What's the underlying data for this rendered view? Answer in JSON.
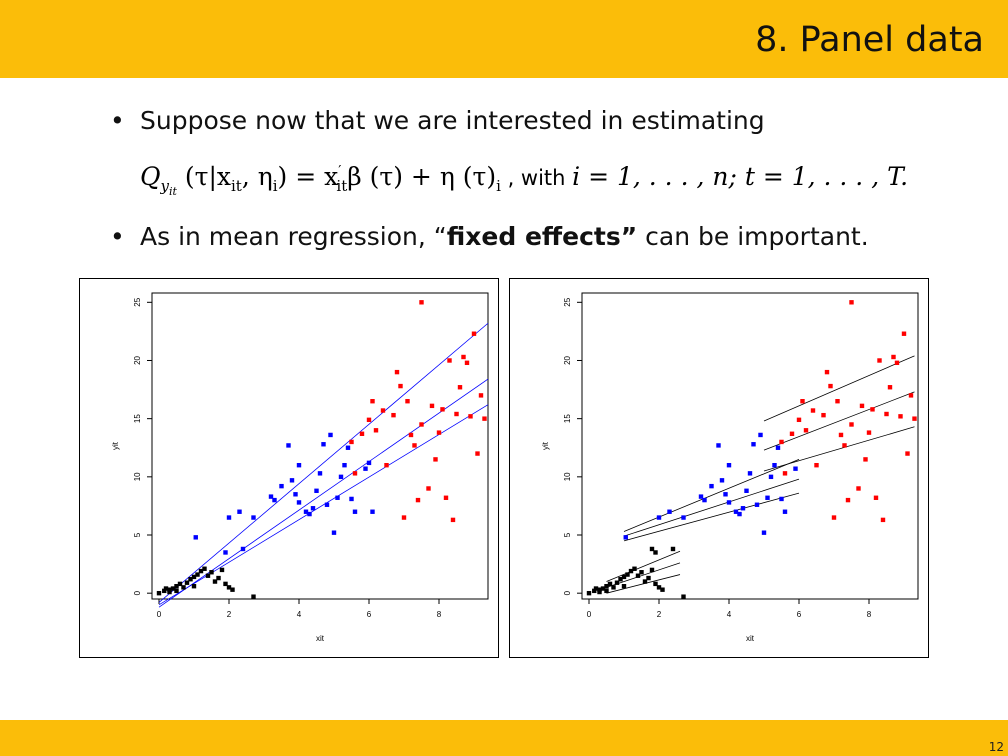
{
  "slide": {
    "title": "8. Panel data",
    "page_number": "12",
    "bullet1": "Suppose now that we are interested in estimating",
    "formula": {
      "lhs": "Q",
      "lhs_sub": "y",
      "lhs_subsub": "it",
      "args": "(τ|x",
      "args_sub": "it",
      "args_mid": ", η",
      "args_sub2": "i",
      "args_end": ") = x",
      "x_sup": "′",
      "x_sub": "it",
      "rhs": "β (τ) + η (τ)",
      "rhs_sub": "i",
      "with_text": " , with ",
      "range_i": "i = 1, . . . , n;  t = 1, . . . , T."
    },
    "bullet2_pre": "As in mean regression, “",
    "bullet2_bold": "fixed effects”",
    "bullet2_post": " can be important."
  },
  "chart_data": [
    {
      "type": "scatter",
      "title": "",
      "xlabel": "xit",
      "ylabel": "yit",
      "xlim": [
        -0.2,
        9.4
      ],
      "ylim": [
        -0.5,
        25.8
      ],
      "xticks": [
        "0",
        "2",
        "4",
        "6",
        "8"
      ],
      "yticks": [
        "0",
        "5",
        "10",
        "15",
        "20",
        "25"
      ],
      "series": [
        {
          "color": "#000000",
          "points": [
            [
              0,
              0
            ],
            [
              0.15,
              0.2
            ],
            [
              0.3,
              0.3
            ],
            [
              0.4,
              0.4
            ],
            [
              0.5,
              0.6
            ],
            [
              0.3,
              0.1
            ],
            [
              0.6,
              0.8
            ],
            [
              0.7,
              0.5
            ],
            [
              0.8,
              0.9
            ],
            [
              0.9,
              1.2
            ],
            [
              1.0,
              1.4
            ],
            [
              1.1,
              1.6
            ],
            [
              1.2,
              1.9
            ],
            [
              1.3,
              2.1
            ],
            [
              1.4,
              1.5
            ],
            [
              1.5,
              1.8
            ],
            [
              1.6,
              1.0
            ],
            [
              1.7,
              1.3
            ],
            [
              1.8,
              2.0
            ],
            [
              1.9,
              0.8
            ],
            [
              2.0,
              0.5
            ],
            [
              2.1,
              0.3
            ],
            [
              1.0,
              0.6
            ],
            [
              0.5,
              0.2
            ],
            [
              0.2,
              0.4
            ],
            [
              2.7,
              -0.3
            ]
          ]
        },
        {
          "color": "#0000ff",
          "points": [
            [
              1.05,
              4.8
            ],
            [
              1.9,
              3.5
            ],
            [
              2.0,
              6.5
            ],
            [
              2.3,
              7.0
            ],
            [
              2.4,
              3.8
            ],
            [
              2.7,
              6.5
            ],
            [
              3.2,
              8.3
            ],
            [
              3.3,
              8.0
            ],
            [
              3.5,
              9.2
            ],
            [
              3.7,
              12.7
            ],
            [
              3.8,
              9.7
            ],
            [
              3.9,
              8.5
            ],
            [
              4.0,
              7.8
            ],
            [
              4.0,
              11.0
            ],
            [
              4.2,
              7.0
            ],
            [
              4.3,
              6.8
            ],
            [
              4.4,
              7.3
            ],
            [
              4.5,
              8.8
            ],
            [
              4.6,
              10.3
            ],
            [
              4.7,
              12.8
            ],
            [
              4.8,
              7.6
            ],
            [
              4.9,
              13.6
            ],
            [
              5.0,
              5.2
            ],
            [
              5.1,
              8.2
            ],
            [
              5.2,
              10.0
            ],
            [
              5.3,
              11.0
            ],
            [
              5.4,
              12.5
            ],
            [
              5.5,
              8.1
            ],
            [
              5.6,
              7.0
            ],
            [
              5.9,
              10.7
            ],
            [
              6.0,
              11.2
            ],
            [
              6.1,
              7.0
            ]
          ]
        },
        {
          "color": "#ff0000",
          "points": [
            [
              5.5,
              13.0
            ],
            [
              5.6,
              10.3
            ],
            [
              5.8,
              13.7
            ],
            [
              6.0,
              14.9
            ],
            [
              6.1,
              16.5
            ],
            [
              6.2,
              14.0
            ],
            [
              6.4,
              15.7
            ],
            [
              6.5,
              11.0
            ],
            [
              6.7,
              15.3
            ],
            [
              6.8,
              19.0
            ],
            [
              6.9,
              17.8
            ],
            [
              7.0,
              6.5
            ],
            [
              7.1,
              16.5
            ],
            [
              7.2,
              13.6
            ],
            [
              7.3,
              12.7
            ],
            [
              7.4,
              8.0
            ],
            [
              7.5,
              14.5
            ],
            [
              7.7,
              9.0
            ],
            [
              7.8,
              16.1
            ],
            [
              7.9,
              11.5
            ],
            [
              8.0,
              13.8
            ],
            [
              8.1,
              15.8
            ],
            [
              8.2,
              8.2
            ],
            [
              8.3,
              20.0
            ],
            [
              8.4,
              6.3
            ],
            [
              8.5,
              15.4
            ],
            [
              8.6,
              17.7
            ],
            [
              8.7,
              20.3
            ],
            [
              8.8,
              19.8
            ],
            [
              8.9,
              15.2
            ],
            [
              9.0,
              22.3
            ],
            [
              9.1,
              12.0
            ],
            [
              9.2,
              17.0
            ],
            [
              9.3,
              15.0
            ],
            [
              7.5,
              25.0
            ]
          ]
        }
      ],
      "lines": [
        {
          "color": "#0000ff",
          "x": [
            0,
            9.4
          ],
          "y": [
            -0.8,
            23.2
          ]
        },
        {
          "color": "#0000ff",
          "x": [
            0,
            9.4
          ],
          "y": [
            -1.2,
            18.4
          ]
        },
        {
          "color": "#0000ff",
          "x": [
            0,
            9.4
          ],
          "y": [
            -1.0,
            16.2
          ]
        }
      ]
    },
    {
      "type": "scatter",
      "title": "",
      "xlabel": "xit",
      "ylabel": "yit",
      "xlim": [
        -0.2,
        9.4
      ],
      "ylim": [
        -0.5,
        25.8
      ],
      "xticks": [
        "0",
        "2",
        "4",
        "6",
        "8"
      ],
      "yticks": [
        "0",
        "5",
        "10",
        "15",
        "20",
        "25"
      ],
      "series": [
        {
          "color": "#000000",
          "points": [
            [
              0,
              0
            ],
            [
              0.15,
              0.2
            ],
            [
              0.3,
              0.3
            ],
            [
              0.4,
              0.4
            ],
            [
              0.5,
              0.6
            ],
            [
              0.3,
              0.1
            ],
            [
              0.6,
              0.8
            ],
            [
              0.7,
              0.5
            ],
            [
              0.8,
              0.9
            ],
            [
              0.9,
              1.2
            ],
            [
              1.0,
              1.4
            ],
            [
              1.1,
              1.6
            ],
            [
              1.2,
              1.9
            ],
            [
              1.3,
              2.1
            ],
            [
              1.4,
              1.5
            ],
            [
              1.5,
              1.8
            ],
            [
              1.6,
              1.0
            ],
            [
              1.7,
              1.3
            ],
            [
              1.8,
              2.0
            ],
            [
              1.9,
              0.8
            ],
            [
              2.0,
              0.5
            ],
            [
              2.1,
              0.3
            ],
            [
              1.0,
              0.6
            ],
            [
              0.5,
              0.2
            ],
            [
              0.2,
              0.4
            ],
            [
              1.9,
              3.5
            ],
            [
              1.8,
              3.8
            ],
            [
              2.4,
              3.8
            ],
            [
              2.7,
              -0.3
            ]
          ]
        },
        {
          "color": "#0000ff",
          "points": [
            [
              1.05,
              4.8
            ],
            [
              2.0,
              6.5
            ],
            [
              2.3,
              7.0
            ],
            [
              2.7,
              6.5
            ],
            [
              3.2,
              8.3
            ],
            [
              3.3,
              8.0
            ],
            [
              3.5,
              9.2
            ],
            [
              3.7,
              12.7
            ],
            [
              3.8,
              9.7
            ],
            [
              3.9,
              8.5
            ],
            [
              4.0,
              7.8
            ],
            [
              4.0,
              11.0
            ],
            [
              4.2,
              7.0
            ],
            [
              4.3,
              6.8
            ],
            [
              4.4,
              7.3
            ],
            [
              4.5,
              8.8
            ],
            [
              4.6,
              10.3
            ],
            [
              4.7,
              12.8
            ],
            [
              4.8,
              7.6
            ],
            [
              4.9,
              13.6
            ],
            [
              5.0,
              5.2
            ],
            [
              5.1,
              8.2
            ],
            [
              5.2,
              10.0
            ],
            [
              5.3,
              11.0
            ],
            [
              5.4,
              12.5
            ],
            [
              5.5,
              8.1
            ],
            [
              5.6,
              7.0
            ],
            [
              5.9,
              10.7
            ]
          ]
        },
        {
          "color": "#ff0000",
          "points": [
            [
              5.5,
              13.0
            ],
            [
              5.6,
              10.3
            ],
            [
              5.8,
              13.7
            ],
            [
              6.0,
              14.9
            ],
            [
              6.1,
              16.5
            ],
            [
              6.2,
              14.0
            ],
            [
              6.4,
              15.7
            ],
            [
              6.5,
              11.0
            ],
            [
              6.7,
              15.3
            ],
            [
              6.8,
              19.0
            ],
            [
              6.9,
              17.8
            ],
            [
              7.0,
              6.5
            ],
            [
              7.1,
              16.5
            ],
            [
              7.2,
              13.6
            ],
            [
              7.3,
              12.7
            ],
            [
              7.4,
              8.0
            ],
            [
              7.5,
              14.5
            ],
            [
              7.7,
              9.0
            ],
            [
              7.8,
              16.1
            ],
            [
              7.9,
              11.5
            ],
            [
              8.0,
              13.8
            ],
            [
              8.1,
              15.8
            ],
            [
              8.2,
              8.2
            ],
            [
              8.3,
              20.0
            ],
            [
              8.4,
              6.3
            ],
            [
              8.5,
              15.4
            ],
            [
              8.6,
              17.7
            ],
            [
              8.7,
              20.3
            ],
            [
              8.8,
              19.8
            ],
            [
              8.9,
              15.2
            ],
            [
              9.0,
              22.3
            ],
            [
              9.1,
              12.0
            ],
            [
              9.2,
              17.0
            ],
            [
              9.3,
              15.0
            ],
            [
              7.5,
              25.0
            ]
          ]
        }
      ],
      "lines": [
        {
          "color": "#000000",
          "x": [
            0.5,
            2.6
          ],
          "y": [
            1.0,
            3.6
          ]
        },
        {
          "color": "#000000",
          "x": [
            0.5,
            2.6
          ],
          "y": [
            0.5,
            2.6
          ]
        },
        {
          "color": "#000000",
          "x": [
            0.5,
            2.6
          ],
          "y": [
            0.0,
            1.6
          ]
        },
        {
          "color": "#000000",
          "x": [
            1.0,
            6.0
          ],
          "y": [
            5.3,
            11.5
          ]
        },
        {
          "color": "#000000",
          "x": [
            1.0,
            6.0
          ],
          "y": [
            4.9,
            9.8
          ]
        },
        {
          "color": "#000000",
          "x": [
            1.0,
            6.0
          ],
          "y": [
            4.5,
            8.6
          ]
        },
        {
          "color": "#000000",
          "x": [
            5.0,
            9.3
          ],
          "y": [
            14.8,
            20.4
          ]
        },
        {
          "color": "#000000",
          "x": [
            5.0,
            9.3
          ],
          "y": [
            12.3,
            17.3
          ]
        },
        {
          "color": "#000000",
          "x": [
            5.0,
            9.3
          ],
          "y": [
            10.5,
            14.3
          ]
        }
      ]
    }
  ]
}
